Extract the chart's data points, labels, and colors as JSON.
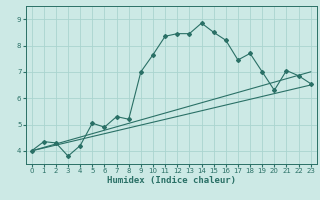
{
  "xlabel": "Humidex (Indice chaleur)",
  "xlim": [
    -0.5,
    23.5
  ],
  "ylim": [
    3.5,
    9.5
  ],
  "xticks": [
    0,
    1,
    2,
    3,
    4,
    5,
    6,
    7,
    8,
    9,
    10,
    11,
    12,
    13,
    14,
    15,
    16,
    17,
    18,
    19,
    20,
    21,
    22,
    23
  ],
  "yticks": [
    4,
    5,
    6,
    7,
    8,
    9
  ],
  "bg_color": "#cce9e5",
  "grid_color": "#aad4cf",
  "line_color": "#2a7066",
  "line1_x": [
    0,
    1,
    2,
    3,
    4,
    5,
    6,
    7,
    8,
    9,
    10,
    11,
    12,
    13,
    14,
    15,
    16,
    17,
    18,
    19,
    20,
    21,
    22,
    23
  ],
  "line1_y": [
    4.0,
    4.35,
    4.3,
    3.8,
    4.2,
    5.05,
    4.9,
    5.3,
    5.2,
    7.0,
    7.65,
    8.35,
    8.45,
    8.45,
    8.85,
    8.5,
    8.2,
    7.45,
    7.7,
    7.0,
    6.3,
    7.05,
    6.85,
    6.55
  ],
  "line2_x": [
    0,
    23
  ],
  "line2_y": [
    4.0,
    6.5
  ],
  "line3_x": [
    0,
    23
  ],
  "line3_y": [
    4.0,
    7.0
  ]
}
